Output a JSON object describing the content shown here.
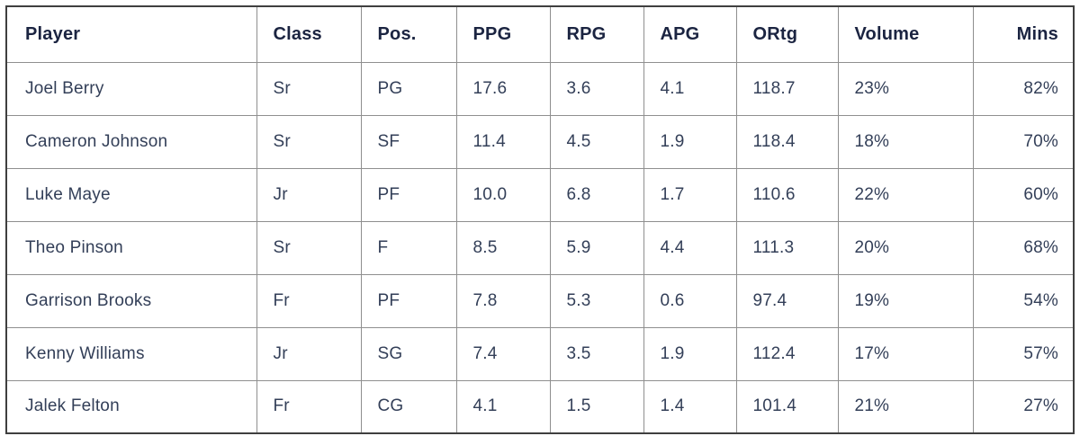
{
  "colors": {
    "header_text": "#1b2441",
    "body_text": "#333f58",
    "grid_line": "#8f8f8f",
    "outer_border": "#3f3f3f",
    "background": "#ffffff"
  },
  "table": {
    "columns": [
      {
        "key": "player",
        "label": "Player",
        "align": "left"
      },
      {
        "key": "class",
        "label": "Class",
        "align": "left"
      },
      {
        "key": "pos",
        "label": "Pos.",
        "align": "left"
      },
      {
        "key": "ppg",
        "label": "PPG",
        "align": "left"
      },
      {
        "key": "rpg",
        "label": "RPG",
        "align": "left"
      },
      {
        "key": "apg",
        "label": "APG",
        "align": "left"
      },
      {
        "key": "ortg",
        "label": "ORtg",
        "align": "left"
      },
      {
        "key": "volume",
        "label": "Volume",
        "align": "left"
      },
      {
        "key": "mins",
        "label": "Mins",
        "align": "right"
      }
    ],
    "rows": [
      {
        "player": "Joel Berry",
        "class": "Sr",
        "pos": "PG",
        "ppg": "17.6",
        "rpg": "3.6",
        "apg": "4.1",
        "ortg": "118.7",
        "volume": "23%",
        "mins": "82%"
      },
      {
        "player": "Cameron Johnson",
        "class": "Sr",
        "pos": "SF",
        "ppg": "11.4",
        "rpg": "4.5",
        "apg": "1.9",
        "ortg": "118.4",
        "volume": "18%",
        "mins": "70%"
      },
      {
        "player": "Luke Maye",
        "class": "Jr",
        "pos": "PF",
        "ppg": "10.0",
        "rpg": "6.8",
        "apg": "1.7",
        "ortg": "110.6",
        "volume": "22%",
        "mins": "60%"
      },
      {
        "player": "Theo Pinson",
        "class": "Sr",
        "pos": "F",
        "ppg": "8.5",
        "rpg": "5.9",
        "apg": "4.4",
        "ortg": "111.3",
        "volume": "20%",
        "mins": "68%"
      },
      {
        "player": "Garrison Brooks",
        "class": "Fr",
        "pos": "PF",
        "ppg": "7.8",
        "rpg": "5.3",
        "apg": "0.6",
        "ortg": "97.4",
        "volume": "19%",
        "mins": "54%"
      },
      {
        "player": "Kenny Williams",
        "class": "Jr",
        "pos": "SG",
        "ppg": "7.4",
        "rpg": "3.5",
        "apg": "1.9",
        "ortg": "112.4",
        "volume": "17%",
        "mins": "57%"
      },
      {
        "player": "Jalek Felton",
        "class": "Fr",
        "pos": "CG",
        "ppg": "4.1",
        "rpg": "1.5",
        "apg": "1.4",
        "ortg": "101.4",
        "volume": "21%",
        "mins": "27%"
      }
    ]
  },
  "chart_data": {
    "type": "table",
    "columns": [
      "Player",
      "Class",
      "Pos.",
      "PPG",
      "RPG",
      "APG",
      "ORtg",
      "Volume",
      "Mins"
    ],
    "rows": [
      [
        "Joel Berry",
        "Sr",
        "PG",
        17.6,
        3.6,
        4.1,
        118.7,
        "23%",
        "82%"
      ],
      [
        "Cameron Johnson",
        "Sr",
        "SF",
        11.4,
        4.5,
        1.9,
        118.4,
        "18%",
        "70%"
      ],
      [
        "Luke Maye",
        "Jr",
        "PF",
        10.0,
        6.8,
        1.7,
        110.6,
        "22%",
        "60%"
      ],
      [
        "Theo Pinson",
        "Sr",
        "F",
        8.5,
        5.9,
        4.4,
        111.3,
        "20%",
        "68%"
      ],
      [
        "Garrison Brooks",
        "Fr",
        "PF",
        7.8,
        5.3,
        0.6,
        97.4,
        "19%",
        "54%"
      ],
      [
        "Kenny Williams",
        "Jr",
        "SG",
        7.4,
        3.5,
        1.9,
        112.4,
        "17%",
        "57%"
      ],
      [
        "Jalek Felton",
        "Fr",
        "CG",
        4.1,
        1.5,
        1.4,
        101.4,
        "21%",
        "27%"
      ]
    ]
  }
}
